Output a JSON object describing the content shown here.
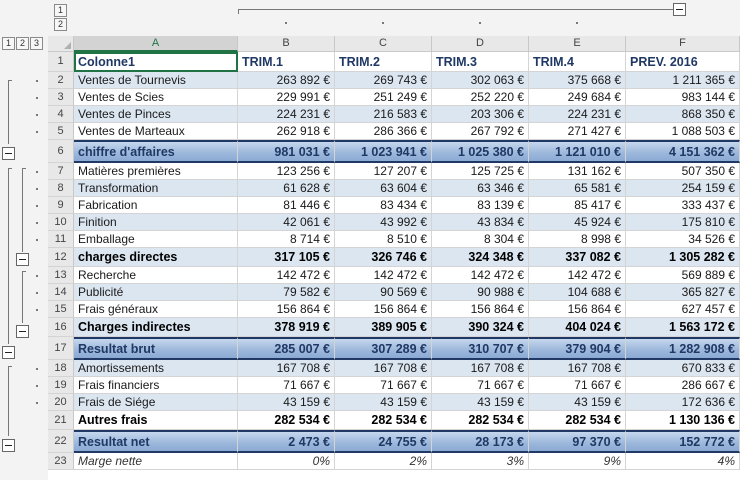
{
  "outline": {
    "col_levels": [
      "1",
      "2"
    ],
    "row_levels": [
      "1",
      "2",
      "3"
    ]
  },
  "columns": [
    "A",
    "B",
    "C",
    "D",
    "E",
    "F"
  ],
  "header": {
    "row_number": "1",
    "labels": [
      "Colonne1",
      "TRIM.1",
      "TRIM.2",
      "TRIM.3",
      "TRIM.4",
      "PREV. 2016"
    ]
  },
  "rows": [
    {
      "n": "2",
      "label": "Ventes de Tournevis",
      "values": [
        "263 892 €",
        "269 743 €",
        "302 063 €",
        "375 668 €",
        "1 211 365 €"
      ],
      "style": "band"
    },
    {
      "n": "3",
      "label": "Ventes de Scies",
      "values": [
        "229 991 €",
        "251 249 €",
        "252 220 €",
        "249 684 €",
        "983 144 €"
      ],
      "style": "white"
    },
    {
      "n": "4",
      "label": "Ventes de Pinces",
      "values": [
        "224 231 €",
        "216 583 €",
        "203 306 €",
        "224 231 €",
        "868 350 €"
      ],
      "style": "band"
    },
    {
      "n": "5",
      "label": "Ventes de Marteaux",
      "values": [
        "262 918 €",
        "286 366 €",
        "267 792 €",
        "271 427 €",
        "1 088 503 €"
      ],
      "style": "white"
    },
    {
      "n": "6",
      "label": "chiffre d'affaires",
      "values": [
        "981 031 €",
        "1 023 941 €",
        "1 025 380 €",
        "1 121 010 €",
        "4 151 362 €"
      ],
      "style": "grad"
    },
    {
      "n": "7",
      "label": "Matières premières",
      "values": [
        "123 256 €",
        "127 207 €",
        "125 725 €",
        "131 162 €",
        "507 350 €"
      ],
      "style": "white"
    },
    {
      "n": "8",
      "label": "Transformation",
      "values": [
        "61 628 €",
        "63 604 €",
        "63 346 €",
        "65 581 €",
        "254 159 €"
      ],
      "style": "band"
    },
    {
      "n": "9",
      "label": "Fabrication",
      "values": [
        "81 446 €",
        "83 434 €",
        "83 139 €",
        "85 417 €",
        "333 437 €"
      ],
      "style": "white"
    },
    {
      "n": "10",
      "label": "Finition",
      "values": [
        "42 061 €",
        "43 992 €",
        "43 834 €",
        "45 924 €",
        "175 810 €"
      ],
      "style": "band"
    },
    {
      "n": "11",
      "label": "Emballage",
      "values": [
        "8 714 €",
        "8 510 €",
        "8 304 €",
        "8 998 €",
        "34 526 €"
      ],
      "style": "white"
    },
    {
      "n": "12",
      "label": "charges directes",
      "values": [
        "317 105 €",
        "326 746 €",
        "324 348 €",
        "337 082 €",
        "1 305 282 €"
      ],
      "style": "sum-band"
    },
    {
      "n": "13",
      "label": "Recherche",
      "values": [
        "142 472 €",
        "142 472 €",
        "142 472 €",
        "142 472 €",
        "569 889 €"
      ],
      "style": "white"
    },
    {
      "n": "14",
      "label": "Publicité",
      "values": [
        "79 582 €",
        "90 569 €",
        "90 988 €",
        "104 688 €",
        "365 827 €"
      ],
      "style": "band"
    },
    {
      "n": "15",
      "label": "Frais généraux",
      "values": [
        "156 864 €",
        "156 864 €",
        "156 864 €",
        "156 864 €",
        "627 457 €"
      ],
      "style": "white"
    },
    {
      "n": "16",
      "label": "Charges indirectes",
      "values": [
        "378 919 €",
        "389 905 €",
        "390 324 €",
        "404 024 €",
        "1 563 172 €"
      ],
      "style": "sum-band"
    },
    {
      "n": "17",
      "label": "Resultat brut",
      "values": [
        "285 007 €",
        "307 289 €",
        "310 707 €",
        "379 904 €",
        "1 282 908 €"
      ],
      "style": "grad"
    },
    {
      "n": "18",
      "label": "Amortissements",
      "values": [
        "167 708 €",
        "167 708 €",
        "167 708 €",
        "167 708 €",
        "670 833 €"
      ],
      "style": "band"
    },
    {
      "n": "19",
      "label": "Frais financiers",
      "values": [
        "71 667 €",
        "71 667 €",
        "71 667 €",
        "71 667 €",
        "286 667 €"
      ],
      "style": "white"
    },
    {
      "n": "20",
      "label": "Frais de Siége",
      "values": [
        "43 159 €",
        "43 159 €",
        "43 159 €",
        "43 159 €",
        "172 636 €"
      ],
      "style": "band"
    },
    {
      "n": "21",
      "label": "Autres frais",
      "values": [
        "282 534 €",
        "282 534 €",
        "282 534 €",
        "282 534 €",
        "1 130 136 €"
      ],
      "style": "sum-white"
    },
    {
      "n": "22",
      "label": "Resultat net",
      "values": [
        "2 473 €",
        "24 755 €",
        "28 173 €",
        "97 370 €",
        "152 772 €"
      ],
      "style": "grad"
    },
    {
      "n": "23",
      "label": "Marge nette",
      "values": [
        "0%",
        "2%",
        "3%",
        "9%",
        "4%"
      ],
      "style": "italic"
    }
  ]
}
